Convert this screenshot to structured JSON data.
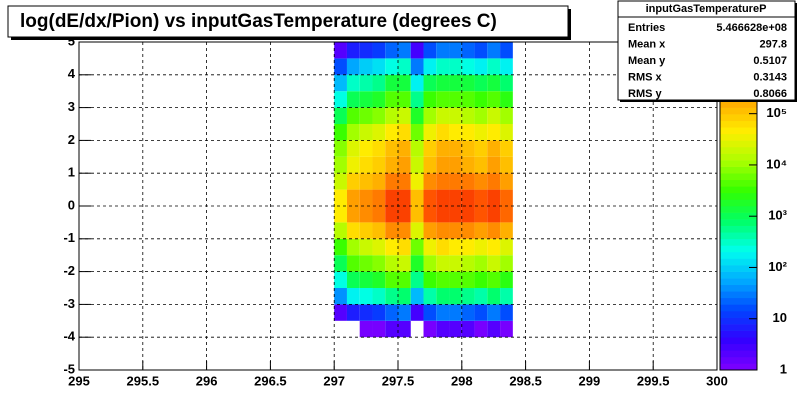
{
  "chart_data": {
    "type": "heatmap",
    "title": "log(dE/dx/Pion) vs inputGasTemperature (degrees C)",
    "x_bins": [
      297.0,
      297.1,
      297.2,
      297.3,
      297.4,
      297.5,
      297.6,
      297.7,
      297.8,
      297.9,
      298.0,
      298.1,
      298.2,
      298.3,
      298.4
    ],
    "y_bins": [
      -5,
      -4.5,
      -4,
      -3.5,
      -3,
      -2.5,
      -2,
      -1.5,
      -1,
      -0.5,
      0,
      0.5,
      1,
      1.5,
      2,
      2.5,
      3,
      3.5,
      4,
      4.5,
      5
    ],
    "z": [
      [
        0,
        0,
        0,
        0,
        0,
        0,
        0,
        0,
        0,
        0,
        0,
        0,
        0,
        0
      ],
      [
        0,
        0,
        0,
        0,
        0,
        0,
        0,
        0,
        0,
        0,
        0,
        0,
        0,
        0
      ],
      [
        0,
        0,
        1,
        1,
        2,
        2,
        0,
        1,
        2,
        2,
        2,
        1,
        2,
        1
      ],
      [
        2,
        6,
        9,
        12,
        24,
        30,
        3,
        18,
        30,
        27,
        24,
        18,
        27,
        15
      ],
      [
        40,
        160,
        240,
        320,
        640,
        800,
        80,
        480,
        800,
        720,
        640,
        480,
        720,
        400
      ],
      [
        250,
        1000,
        1500,
        2000,
        4000,
        5000,
        500,
        3000,
        5000,
        4500,
        4000,
        3000,
        4500,
        2500
      ],
      [
        1000,
        4000,
        6000,
        8000,
        16000,
        20000,
        2000,
        12000,
        20000,
        18000,
        16000,
        12000,
        18000,
        10000
      ],
      [
        3000,
        12000,
        18000,
        24000,
        48000,
        60000,
        6000,
        36000,
        60000,
        54000,
        48000,
        36000,
        54000,
        30000
      ],
      [
        15000,
        60000,
        90000,
        120000,
        240000,
        300000,
        30000,
        180000,
        300000,
        270000,
        240000,
        180000,
        270000,
        150000
      ],
      [
        50000,
        200000,
        300000,
        400000,
        800000,
        1000000,
        100000,
        600000,
        1000000,
        900000,
        800000,
        600000,
        900000,
        500000
      ],
      [
        50000,
        200000,
        300000,
        400000,
        800000,
        1000000,
        100000,
        600000,
        1000000,
        900000,
        800000,
        600000,
        900000,
        500000
      ],
      [
        20000,
        80000,
        120000,
        160000,
        320000,
        400000,
        40000,
        240000,
        400000,
        360000,
        320000,
        240000,
        360000,
        200000
      ],
      [
        10000,
        40000,
        60000,
        80000,
        160000,
        200000,
        20000,
        120000,
        200000,
        180000,
        160000,
        120000,
        180000,
        100000
      ],
      [
        7500,
        30000,
        45000,
        60000,
        120000,
        150000,
        15000,
        90000,
        150000,
        135000,
        120000,
        90000,
        135000,
        75000
      ],
      [
        3000,
        12000,
        18000,
        24000,
        48000,
        60000,
        6000,
        36000,
        60000,
        54000,
        48000,
        36000,
        54000,
        30000
      ],
      [
        1000,
        4000,
        6000,
        8000,
        16000,
        20000,
        2000,
        12000,
        20000,
        18000,
        16000,
        12000,
        18000,
        10000
      ],
      [
        250,
        1000,
        1500,
        2000,
        4000,
        5000,
        500,
        3000,
        5000,
        4500,
        4000,
        3000,
        4500,
        2500
      ],
      [
        75,
        300,
        450,
        600,
        1200,
        1500,
        150,
        900,
        1500,
        1350,
        1200,
        900,
        1350,
        750
      ],
      [
        15,
        60,
        90,
        120,
        240,
        300,
        30,
        180,
        300,
        270,
        240,
        180,
        270,
        150
      ],
      [
        2,
        6,
        9,
        12,
        24,
        30,
        3,
        18,
        30,
        27,
        24,
        18,
        27,
        15
      ]
    ],
    "xlim": [
      295,
      300
    ],
    "xticks": [
      295,
      295.5,
      296,
      296.5,
      297,
      297.5,
      298,
      298.5,
      299,
      299.5,
      300
    ],
    "ylim": [
      -5,
      5
    ],
    "yticks": [
      -5,
      -4,
      -3,
      -2,
      -1,
      0,
      1,
      2,
      3,
      4,
      5
    ],
    "zlim": [
      1,
      2500000
    ],
    "zlog": true,
    "zticks": [
      {
        "value": 1,
        "label": "1"
      },
      {
        "value": 10,
        "label": "10"
      },
      {
        "value": 100,
        "label": "10²"
      },
      {
        "value": 1000,
        "label": "10³"
      },
      {
        "value": 10000,
        "label": "10⁴"
      },
      {
        "value": 100000,
        "label": "10⁵"
      },
      {
        "value": 1000000,
        "label": "10⁶"
      }
    ],
    "palette": [
      "#7f00ff",
      "#3300ff",
      "#0044ff",
      "#00aaff",
      "#00ffee",
      "#00ff66",
      "#33ff00",
      "#aaff00",
      "#ffee00",
      "#ffaa00",
      "#ff5500",
      "#ee0000"
    ],
    "grid": true,
    "stats": {
      "title": "inputGasTemperatureP",
      "rows": [
        {
          "label": "Entries",
          "value": "5.466628e+08"
        },
        {
          "label": "Mean x",
          "value": "297.8"
        },
        {
          "label": "Mean y",
          "value": "0.5107"
        },
        {
          "label": "RMS x",
          "value": "0.3143"
        },
        {
          "label": "RMS y",
          "value": "0.8066"
        }
      ]
    }
  }
}
